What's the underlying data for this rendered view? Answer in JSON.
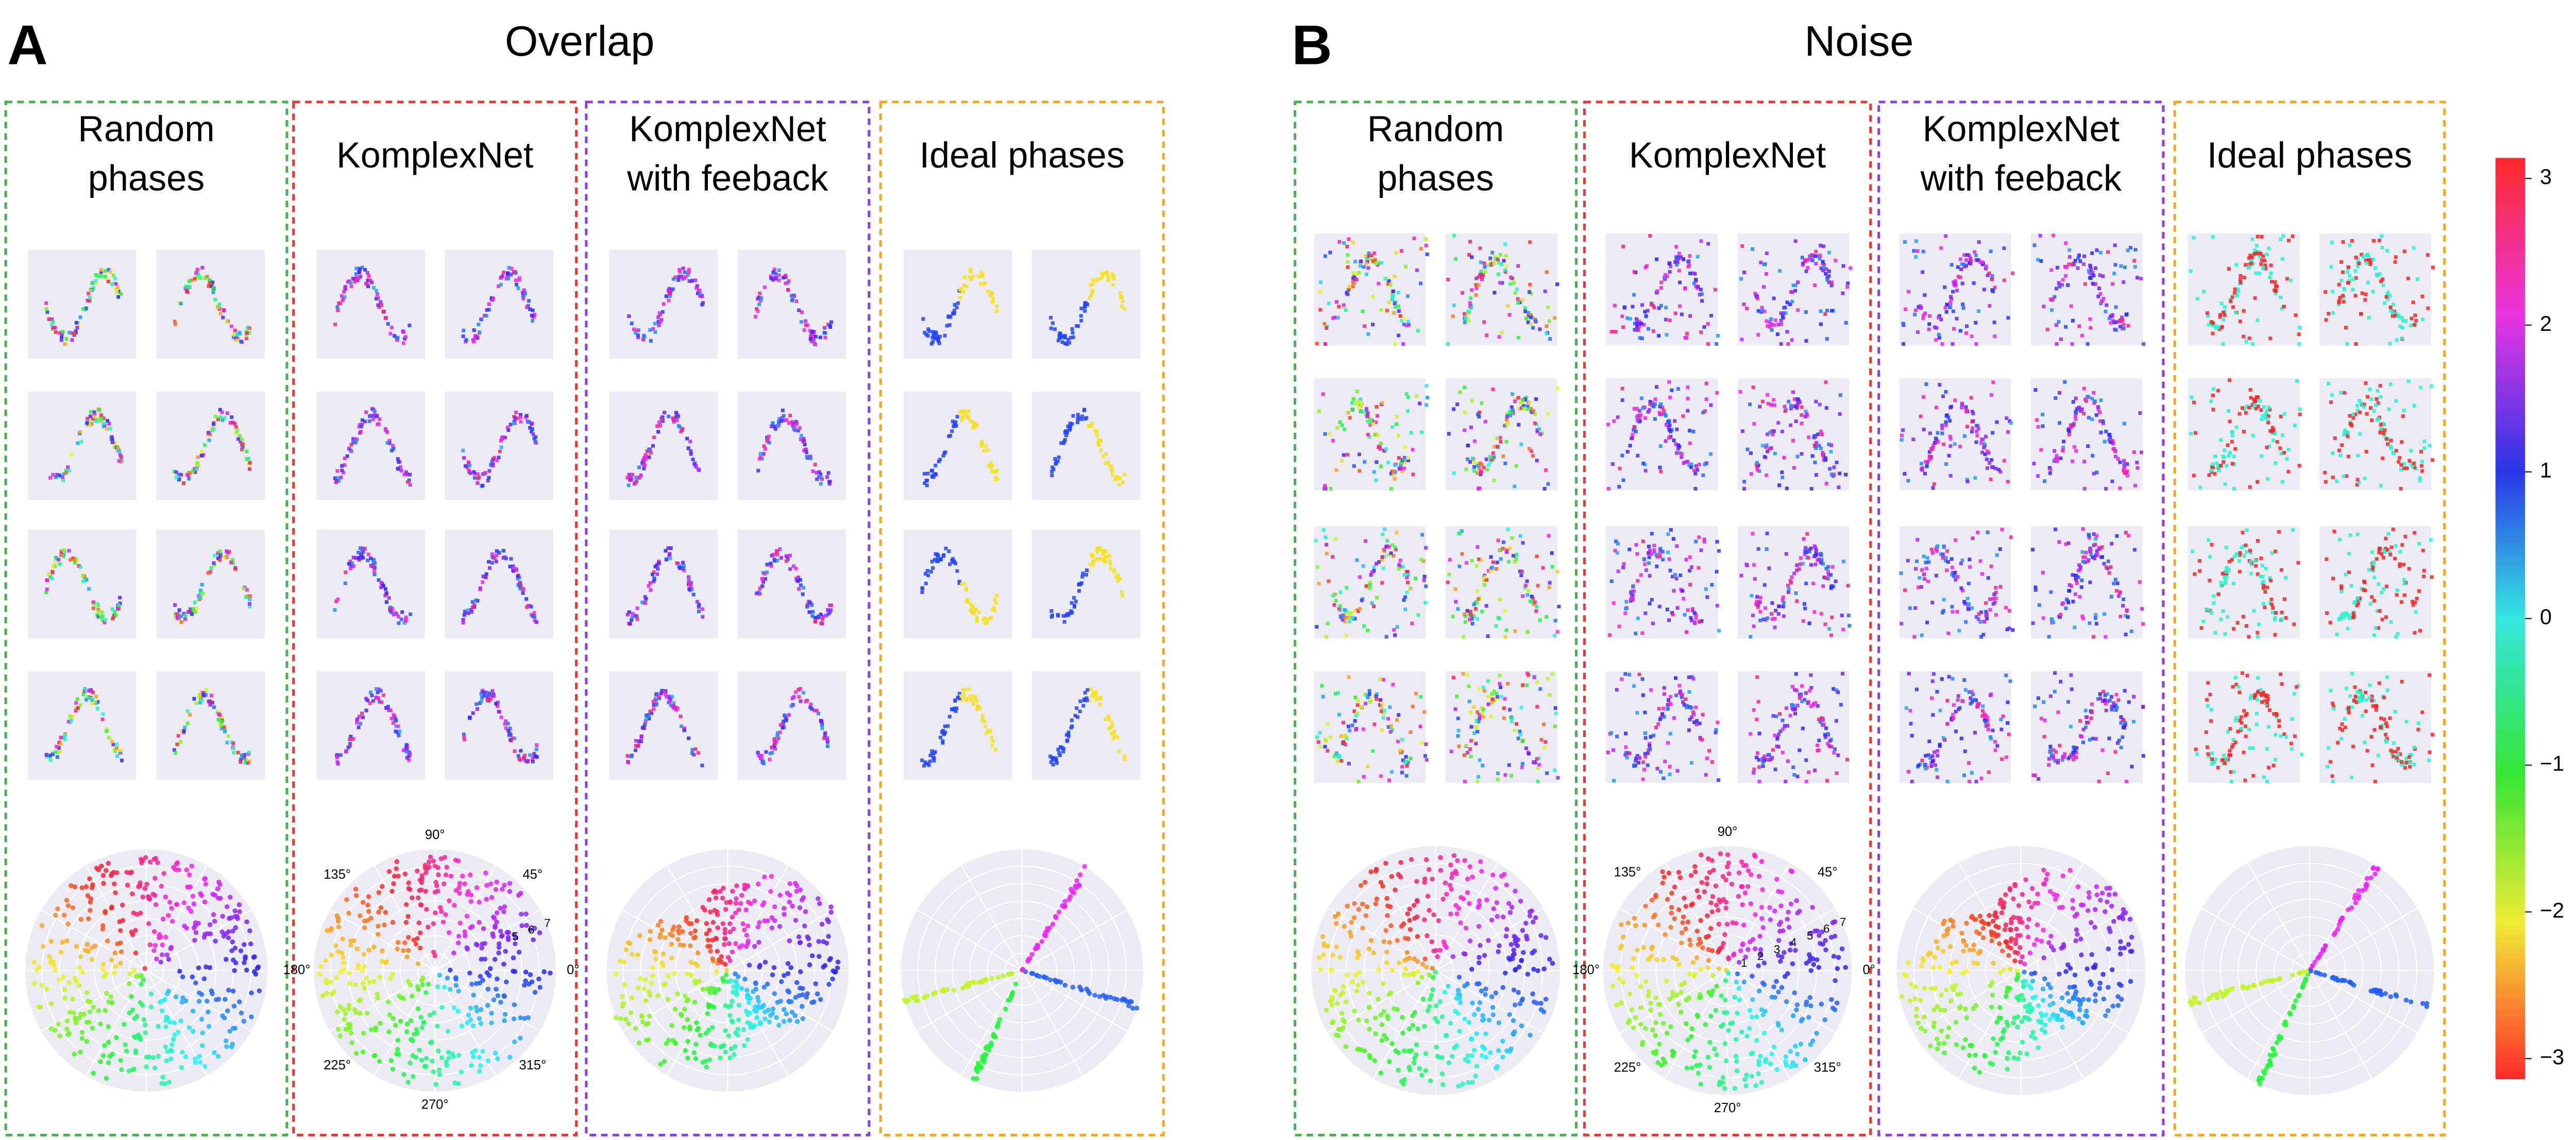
{
  "panels": [
    {
      "label": "A",
      "title": "Overlap",
      "columns": [
        {
          "title": [
            "Random",
            "phases"
          ]
        },
        {
          "title": [
            "KomplexNet"
          ],
          "polar": {
            "angles": [
              "0°",
              "45°",
              "90°",
              "135°",
              "180°",
              "225°",
              "270°",
              "315°"
            ],
            "radii": [
              "5",
              "6",
              "7"
            ]
          }
        },
        {
          "title": [
            "KomplexNet",
            "with feeback"
          ]
        },
        {
          "title": [
            "Ideal phases"
          ]
        }
      ]
    },
    {
      "label": "B",
      "title": "Noise",
      "columns": [
        {
          "title": [
            "Random",
            "phases"
          ]
        },
        {
          "title": [
            "KomplexNet"
          ],
          "polar": {
            "angles": [
              "0°",
              "45°",
              "90°",
              "135°",
              "180°",
              "225°",
              "270°",
              "315°"
            ],
            "radii": [
              "1",
              "2",
              "3",
              "4",
              "5",
              "6",
              "7"
            ]
          }
        },
        {
          "title": [
            "KomplexNet",
            "with feeback"
          ]
        },
        {
          "title": [
            "Ideal phases"
          ]
        }
      ]
    }
  ],
  "colorbar": {
    "lim": [
      -3.14,
      3.14
    ],
    "ticks": [
      3,
      2,
      1,
      0,
      {
        "value": -1,
        "label": "−1"
      },
      {
        "value": -2,
        "label": "−2"
      },
      {
        "value": -3,
        "label": "−3"
      }
    ]
  }
}
